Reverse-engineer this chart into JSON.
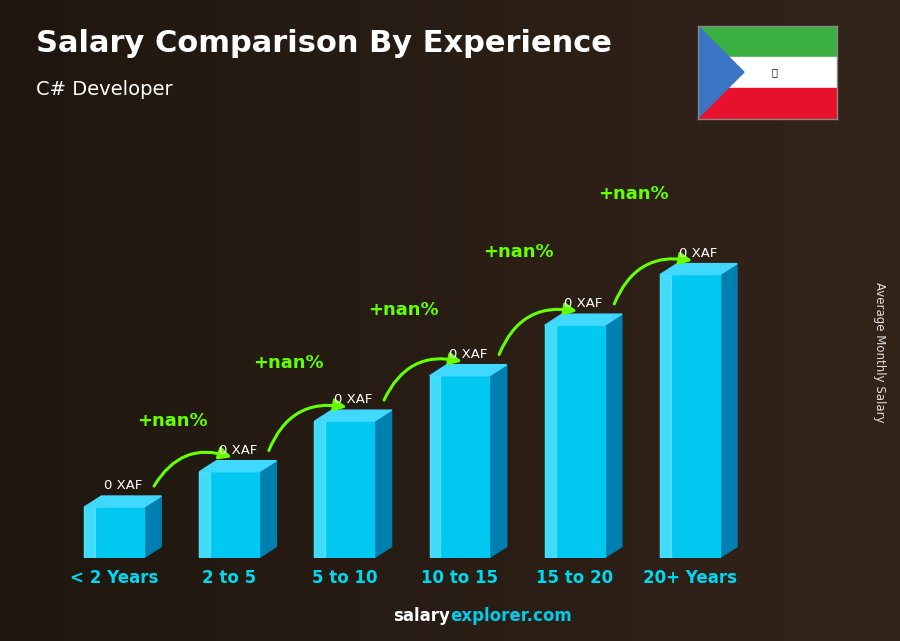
{
  "title": "Salary Comparison By Experience",
  "subtitle": "C# Developer",
  "categories": [
    "< 2 Years",
    "2 to 5",
    "5 to 10",
    "10 to 15",
    "15 to 20",
    "20+ Years"
  ],
  "bar_labels": [
    "0 XAF",
    "0 XAF",
    "0 XAF",
    "0 XAF",
    "0 XAF",
    "0 XAF"
  ],
  "pct_labels": [
    "+nan%",
    "+nan%",
    "+nan%",
    "+nan%",
    "+nan%"
  ],
  "pct_color": "#66ff00",
  "bar_color_front": "#00c8f0",
  "bar_color_side": "#0080b0",
  "bar_color_top": "#40d8ff",
  "bar_highlight": "#80eeff",
  "title_color": "#ffffff",
  "subtitle_color": "#ffffff",
  "label_color": "#ffffff",
  "bg_color": "#2b2b2b",
  "watermark_salary": "Average Monthly Salary",
  "watermark_text": "salaryexplorer.com",
  "bar_heights": [
    1.0,
    1.7,
    2.7,
    3.6,
    4.6,
    5.6
  ],
  "xlim": [
    -0.6,
    6.2
  ],
  "ylim": [
    0,
    8.5
  ],
  "flag_green": "#3cb043",
  "flag_white": "#ffffff",
  "flag_red": "#e8112d",
  "flag_blue": "#3a75c4"
}
